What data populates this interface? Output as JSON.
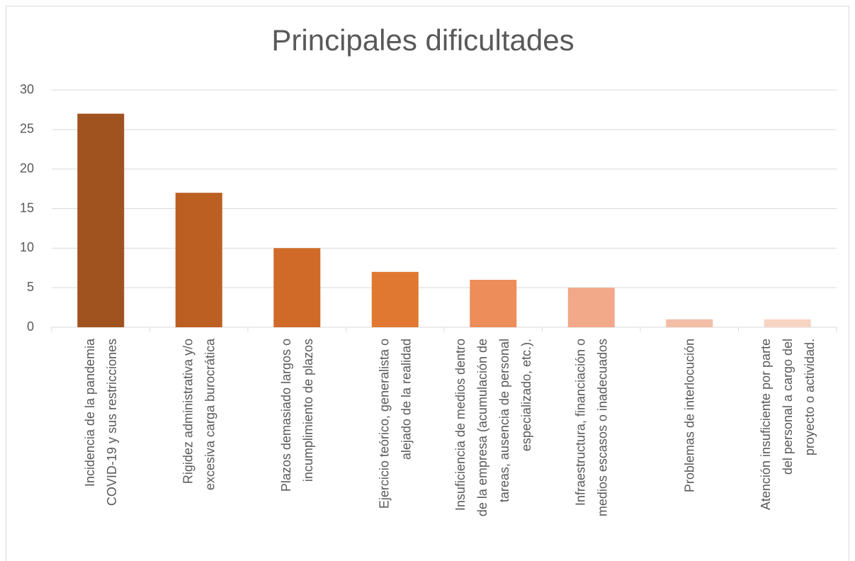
{
  "chart_data": {
    "type": "bar",
    "title": "Principales dificultades",
    "categories": [
      "Incidencia de la pandemia\nCOVID-19 y sus restricciones",
      "Rigidez administrativa y/o\nexcesiva carga burocrática",
      "Plazos demasiado largos o\nincumplimiento de plazos",
      "Ejercicio teórico, generalista o\nalejado de la realidad",
      "Insuficiencia de medios dentro\nde la empresa (acumulación de\ntareas, ausencia de personal\nespecializado, etc.).",
      "Infraestructura, financiación o\nmedios escasos o inadecuados",
      "Problemas de interlocución",
      "Atención insuficiente por parte\ndel personal a cargo del\nproyecto o actividad."
    ],
    "values": [
      27,
      17,
      10,
      7,
      6,
      5,
      1,
      1
    ],
    "colors": [
      "#a0531f",
      "#bc5f23",
      "#d06a28",
      "#e17832",
      "#ec8d5a",
      "#f1a98a",
      "#f3bea6",
      "#f6d4c4"
    ],
    "ylim": [
      0,
      30
    ],
    "yticks": [
      0,
      5,
      10,
      15,
      20,
      25,
      30
    ],
    "grid": true
  }
}
